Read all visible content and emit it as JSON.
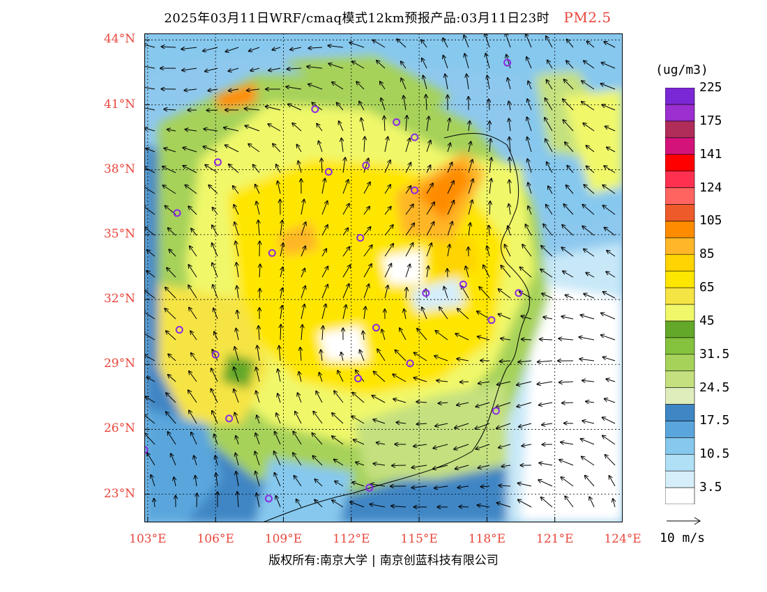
{
  "header": {
    "title": "2025年03月11日WRF/cmaq模式12km预报产品:03月11日23时",
    "pollutant": "PM2.5"
  },
  "map": {
    "lat_labels": [
      "44°N",
      "41°N",
      "38°N",
      "35°N",
      "32°N",
      "29°N",
      "26°N",
      "23°N"
    ],
    "lat_values": [
      44,
      41,
      38,
      35,
      32,
      29,
      26,
      23
    ],
    "lon_labels": [
      "103°E",
      "106°E",
      "109°E",
      "112°E",
      "115°E",
      "118°E",
      "121°E",
      "124°E"
    ],
    "lon_values": [
      103,
      106,
      109,
      112,
      115,
      118,
      121,
      124
    ],
    "extent": {
      "lon": [
        102.85,
        124.0
      ],
      "lat": [
        21.7,
        44.3
      ]
    },
    "label_color": "#e8463c",
    "cities": [
      {
        "lon": 118.9,
        "lat": 42.95
      },
      {
        "lon": 110.4,
        "lat": 40.8
      },
      {
        "lon": 114.0,
        "lat": 40.2
      },
      {
        "lon": 114.8,
        "lat": 39.5
      },
      {
        "lon": 106.1,
        "lat": 38.35
      },
      {
        "lon": 111.0,
        "lat": 37.9
      },
      {
        "lon": 112.65,
        "lat": 38.2
      },
      {
        "lon": 114.8,
        "lat": 37.05
      },
      {
        "lon": 104.3,
        "lat": 36.0
      },
      {
        "lon": 112.4,
        "lat": 34.85
      },
      {
        "lon": 108.5,
        "lat": 34.15
      },
      {
        "lon": 115.3,
        "lat": 32.3
      },
      {
        "lon": 116.95,
        "lat": 32.7
      },
      {
        "lon": 119.4,
        "lat": 32.3
      },
      {
        "lon": 118.2,
        "lat": 31.05
      },
      {
        "lon": 104.4,
        "lat": 30.6
      },
      {
        "lon": 113.1,
        "lat": 30.7
      },
      {
        "lon": 106.0,
        "lat": 29.45
      },
      {
        "lon": 114.6,
        "lat": 29.05
      },
      {
        "lon": 112.3,
        "lat": 28.35
      },
      {
        "lon": 106.6,
        "lat": 26.5
      },
      {
        "lon": 118.4,
        "lat": 26.85
      },
      {
        "lon": 102.85,
        "lat": 25.05
      },
      {
        "lon": 108.35,
        "lat": 22.8
      },
      {
        "lon": 112.8,
        "lat": 23.3
      }
    ]
  },
  "colorbar": {
    "unit": "(ug/m3)",
    "colors": [
      "#ffffff",
      "#d6eefa",
      "#b0e0f6",
      "#86c8ee",
      "#5aa6dc",
      "#3f86c4",
      "#dfedbd",
      "#c4e07f",
      "#a6d25a",
      "#85c23e",
      "#64a82a",
      "#f0f86a",
      "#f6e444",
      "#ffe600",
      "#ffd400",
      "#ffb628",
      "#ff8c00",
      "#ee5a2a",
      "#ff6460",
      "#ff3050",
      "#ff0000",
      "#d4137a",
      "#b02d5a",
      "#9b2fd0",
      "#7a28d6"
    ],
    "labels": [
      "3.5",
      "10.5",
      "17.5",
      "24.5",
      "31.5",
      "45",
      "65",
      "85",
      "105",
      "124",
      "141",
      "175",
      "225"
    ]
  },
  "wind_scale": {
    "label": "10 m/s"
  },
  "footer": {
    "copyright": "版权所有:南京大学",
    "company": "南京创蓝科技有限公司"
  }
}
